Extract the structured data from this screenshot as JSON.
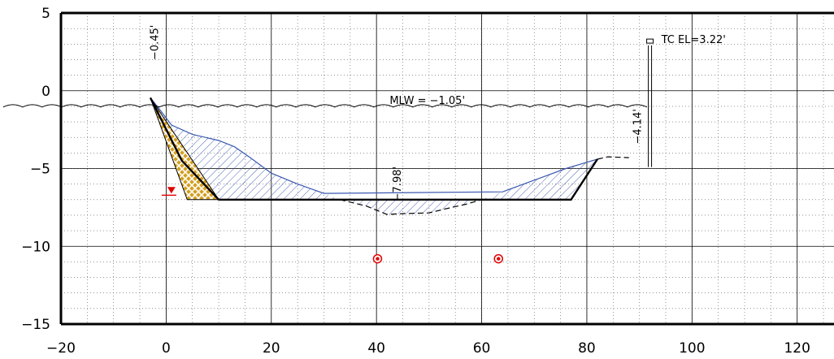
{
  "chart_data": {
    "type": "cross-section",
    "xlim": [
      -20,
      127
    ],
    "ylim": [
      -15,
      5
    ],
    "x_ticks": [
      -20,
      0,
      20,
      40,
      60,
      80,
      100,
      120
    ],
    "y_ticks": [
      -15,
      -10,
      -5,
      0,
      5
    ],
    "x_tick_labels": [
      "−20",
      "0",
      "20",
      "40",
      "60",
      "80",
      "100",
      "120"
    ],
    "y_tick_labels": [
      "−15",
      "−10",
      "−5",
      "0",
      "5"
    ],
    "minor_x_step": 5,
    "minor_y_step": 1,
    "mlw_elevation": -1.05,
    "water_x_range": [
      -31,
      92
    ],
    "existing_grade": [
      [
        -3,
        -0.45
      ],
      [
        -1,
        -1.3
      ],
      [
        1,
        -2.2
      ],
      [
        5,
        -2.8
      ],
      [
        10,
        -3.2
      ],
      [
        13,
        -3.6
      ],
      [
        16,
        -4.3
      ],
      [
        20,
        -5.3
      ],
      [
        25,
        -6.0
      ],
      [
        30,
        -6.6
      ],
      [
        33,
        -7.0
      ],
      [
        38,
        -7.4
      ],
      [
        42,
        -7.95
      ],
      [
        45,
        -7.9
      ],
      [
        50,
        -7.85
      ],
      [
        53,
        -7.6
      ],
      [
        57,
        -7.3
      ],
      [
        60,
        -7.0
      ],
      [
        64,
        -6.5
      ],
      [
        68,
        -6.0
      ],
      [
        72,
        -5.5
      ],
      [
        76,
        -5.0
      ],
      [
        80,
        -4.6
      ],
      [
        82,
        -4.4
      ],
      [
        84,
        -4.25
      ],
      [
        88,
        -4.3
      ]
    ],
    "proposed_section": [
      [
        -3,
        -0.45
      ],
      [
        3,
        -4.5
      ],
      [
        10,
        -7.0
      ],
      [
        77,
        -7.0
      ],
      [
        82,
        -4.4
      ]
    ],
    "proposed_wide_hatch": [
      [
        -3,
        -0.45
      ],
      [
        4,
        -7.0
      ],
      [
        10,
        -7.0
      ]
    ],
    "tc_wall": {
      "x": 92,
      "elevation": 3.22,
      "bottom": -4.9
    },
    "red_marker": {
      "x": 1,
      "y": -6.4
    },
    "circles": [
      [
        40.2,
        -10.8
      ],
      [
        63.2,
        -10.8
      ]
    ],
    "labels": {
      "mlw": "MLW = −1.05'",
      "tc": "TC EL=3.22'",
      "elev_left": "−0.45'",
      "elev_right": "−4.14'",
      "elev_bottom": "−7.98'"
    },
    "colors": {
      "wedge_fill": "#d4a020",
      "cut_hatch": "#3a58b0",
      "marker": "#e00000"
    }
  }
}
